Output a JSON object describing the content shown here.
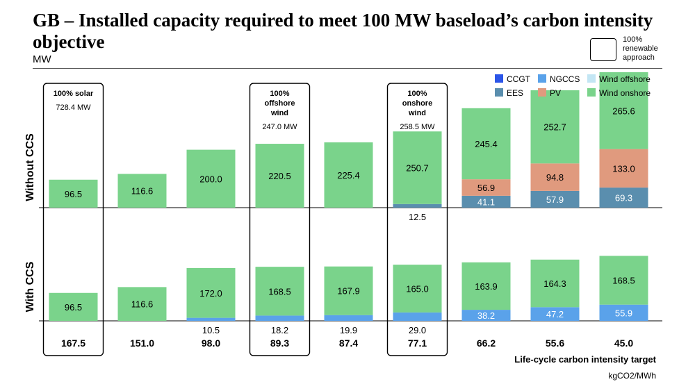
{
  "title": "GB – Installed capacity required to meet 100 MW baseload’s carbon intensity objective",
  "unit": "MW",
  "legend_box_label": [
    "100%",
    "renewable",
    "approach"
  ],
  "xlabel": "Life-cycle carbon intensity target",
  "xunit": "kgCO2/MWh",
  "chart_data": {
    "type": "bar",
    "stacked": true,
    "title": "GB – Installed capacity required to meet 100 MW baseload’s carbon intensity objective",
    "ylabel": "MW",
    "xlabel": "Life-cycle carbon intensity target",
    "xunit": "kgCO2/MWh",
    "categories": [
      "167.5",
      "151.0",
      "98.0",
      "89.3",
      "87.4",
      "77.1",
      "66.2",
      "55.6",
      "45.0"
    ],
    "legend_position": "top-right",
    "series_colors": {
      "CCGT": "#2b55e8",
      "NGCCS": "#5aa2ea",
      "Wind offshore": "#c3e6f4",
      "EES": "#5a8eae",
      "PV": "#e09a7e",
      "Wind onshore": "#7ad38b"
    },
    "legend": [
      "CCGT",
      "NGCCS",
      "Wind offshore",
      "EES",
      "PV",
      "Wind onshore"
    ],
    "panels": [
      {
        "name": "Without CCS",
        "series": [
          {
            "name": "EES",
            "values": [
              0,
              0,
              0,
              0,
              0,
              12.5,
              41.1,
              57.9,
              69.3
            ]
          },
          {
            "name": "PV",
            "values": [
              0,
              0,
              0,
              0,
              0,
              0,
              56.9,
              94.8,
              133.0
            ]
          },
          {
            "name": "Wind onshore",
            "values": [
              96.5,
              116.6,
              200.0,
              220.5,
              225.4,
              250.7,
              245.4,
              252.7,
              265.6
            ]
          }
        ]
      },
      {
        "name": "With CCS",
        "series": [
          {
            "name": "NGCCS",
            "values": [
              0,
              0,
              10.5,
              18.2,
              19.9,
              29.0,
              38.2,
              47.2,
              55.9
            ]
          },
          {
            "name": "Wind onshore",
            "values": [
              96.5,
              116.6,
              172.0,
              168.5,
              167.9,
              165.0,
              163.9,
              164.3,
              168.5
            ]
          }
        ]
      }
    ],
    "annotations": [
      {
        "category": "167.5",
        "label": "100% solar",
        "value": "728.4 MW"
      },
      {
        "category": "89.3",
        "label": "100% offshore wind",
        "value": "247.0 MW"
      },
      {
        "category": "77.1",
        "label": "100% onshore wind",
        "value": "258.5 MW"
      }
    ]
  }
}
